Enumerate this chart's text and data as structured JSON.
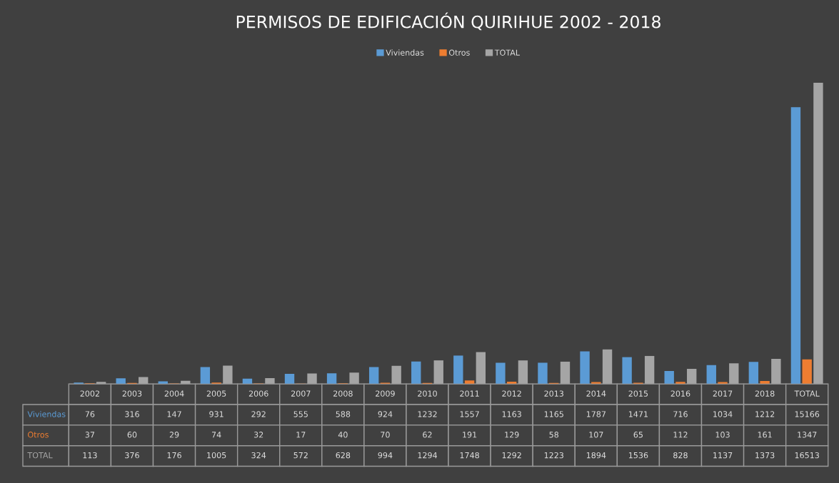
{
  "chart_data": {
    "type": "bar",
    "title": "PERMISOS DE EDIFICACIÓN QUIRIHUE 2002 - 2018",
    "categories": [
      "2002",
      "2003",
      "2004",
      "2005",
      "2006",
      "2007",
      "2008",
      "2009",
      "2010",
      "2011",
      "2012",
      "2013",
      "2014",
      "2015",
      "2016",
      "2017",
      "2018",
      "TOTAL"
    ],
    "series": [
      {
        "name": "Viviendas",
        "color": "#5b9bd5",
        "values": [
          76,
          316,
          147,
          931,
          292,
          555,
          588,
          924,
          1232,
          1557,
          1163,
          1165,
          1787,
          1471,
          716,
          1034,
          1212,
          15166
        ]
      },
      {
        "name": "Otros",
        "color": "#ed7d31",
        "values": [
          37,
          60,
          29,
          74,
          32,
          17,
          40,
          70,
          62,
          191,
          129,
          58,
          107,
          65,
          112,
          103,
          161,
          1347
        ]
      },
      {
        "name": "TOTAL",
        "color": "#a5a5a5",
        "values": [
          113,
          376,
          176,
          1005,
          324,
          572,
          628,
          994,
          1294,
          1748,
          1292,
          1223,
          1894,
          1536,
          828,
          1137,
          1373,
          16513
        ]
      }
    ],
    "data_labels": true,
    "legend": "top"
  }
}
